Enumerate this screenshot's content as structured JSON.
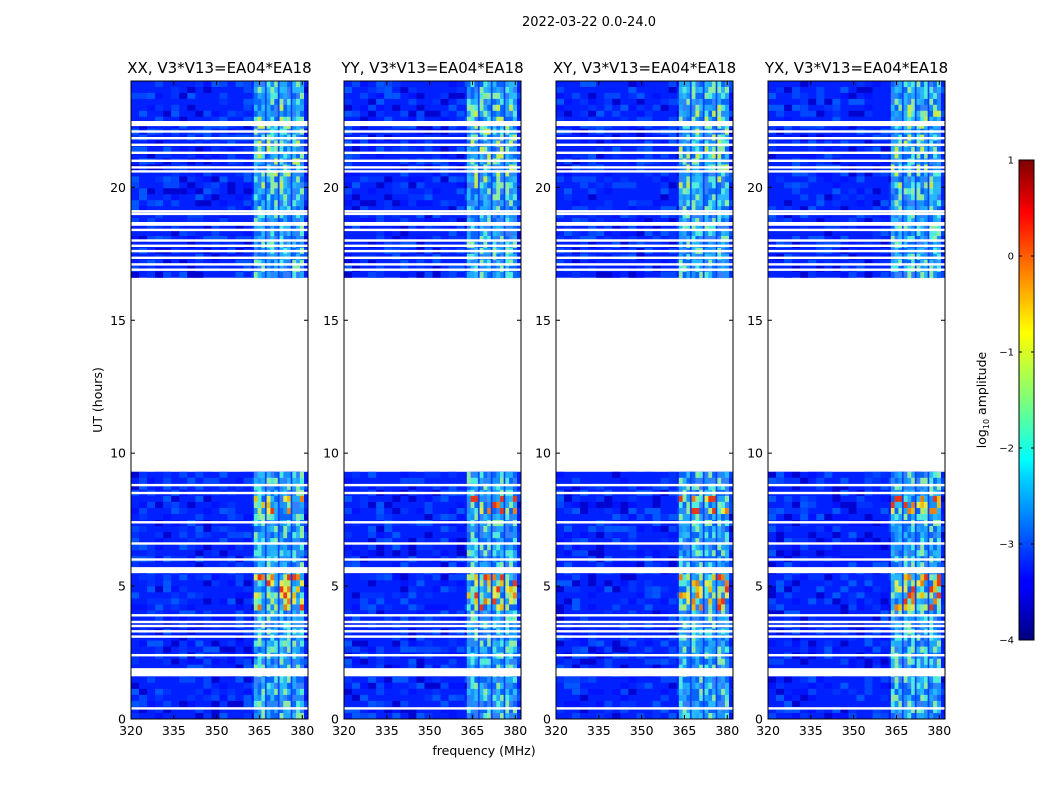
{
  "figure": {
    "suptitle": "2022-03-22 0.0-24.0"
  },
  "chart_data": {
    "type": "heatmap",
    "suptitle": "2022-03-22 0.0-24.0",
    "xlabel": "frequency (MHz)",
    "ylabel": "UT (hours)",
    "xlim": [
      320,
      382
    ],
    "ylim": [
      0,
      24
    ],
    "xticks": [
      320,
      335,
      350,
      365,
      380
    ],
    "yticks": [
      0,
      5,
      10,
      15,
      20
    ],
    "no_data_band_hours": [
      16.6,
      9.3
    ],
    "band_frequency_mhz": [
      363,
      381
    ],
    "colorbar": {
      "label_prefix": "log",
      "label_sub": "10",
      "label_suffix": " amplitude",
      "range": [
        -4,
        1
      ],
      "ticks": [
        -4,
        -3,
        -2,
        -1,
        0,
        1
      ],
      "colormap": "jet"
    },
    "panels": [
      {
        "title": "XX, V3*V13=EA04*EA18",
        "pol": "XX"
      },
      {
        "title": "YY, V3*V13=EA04*EA18",
        "pol": "YY"
      },
      {
        "title": "XY, V3*V13=EA04*EA18",
        "pol": "XY"
      },
      {
        "title": "YX, V3*V13=EA04*EA18",
        "pol": "YX"
      }
    ]
  }
}
